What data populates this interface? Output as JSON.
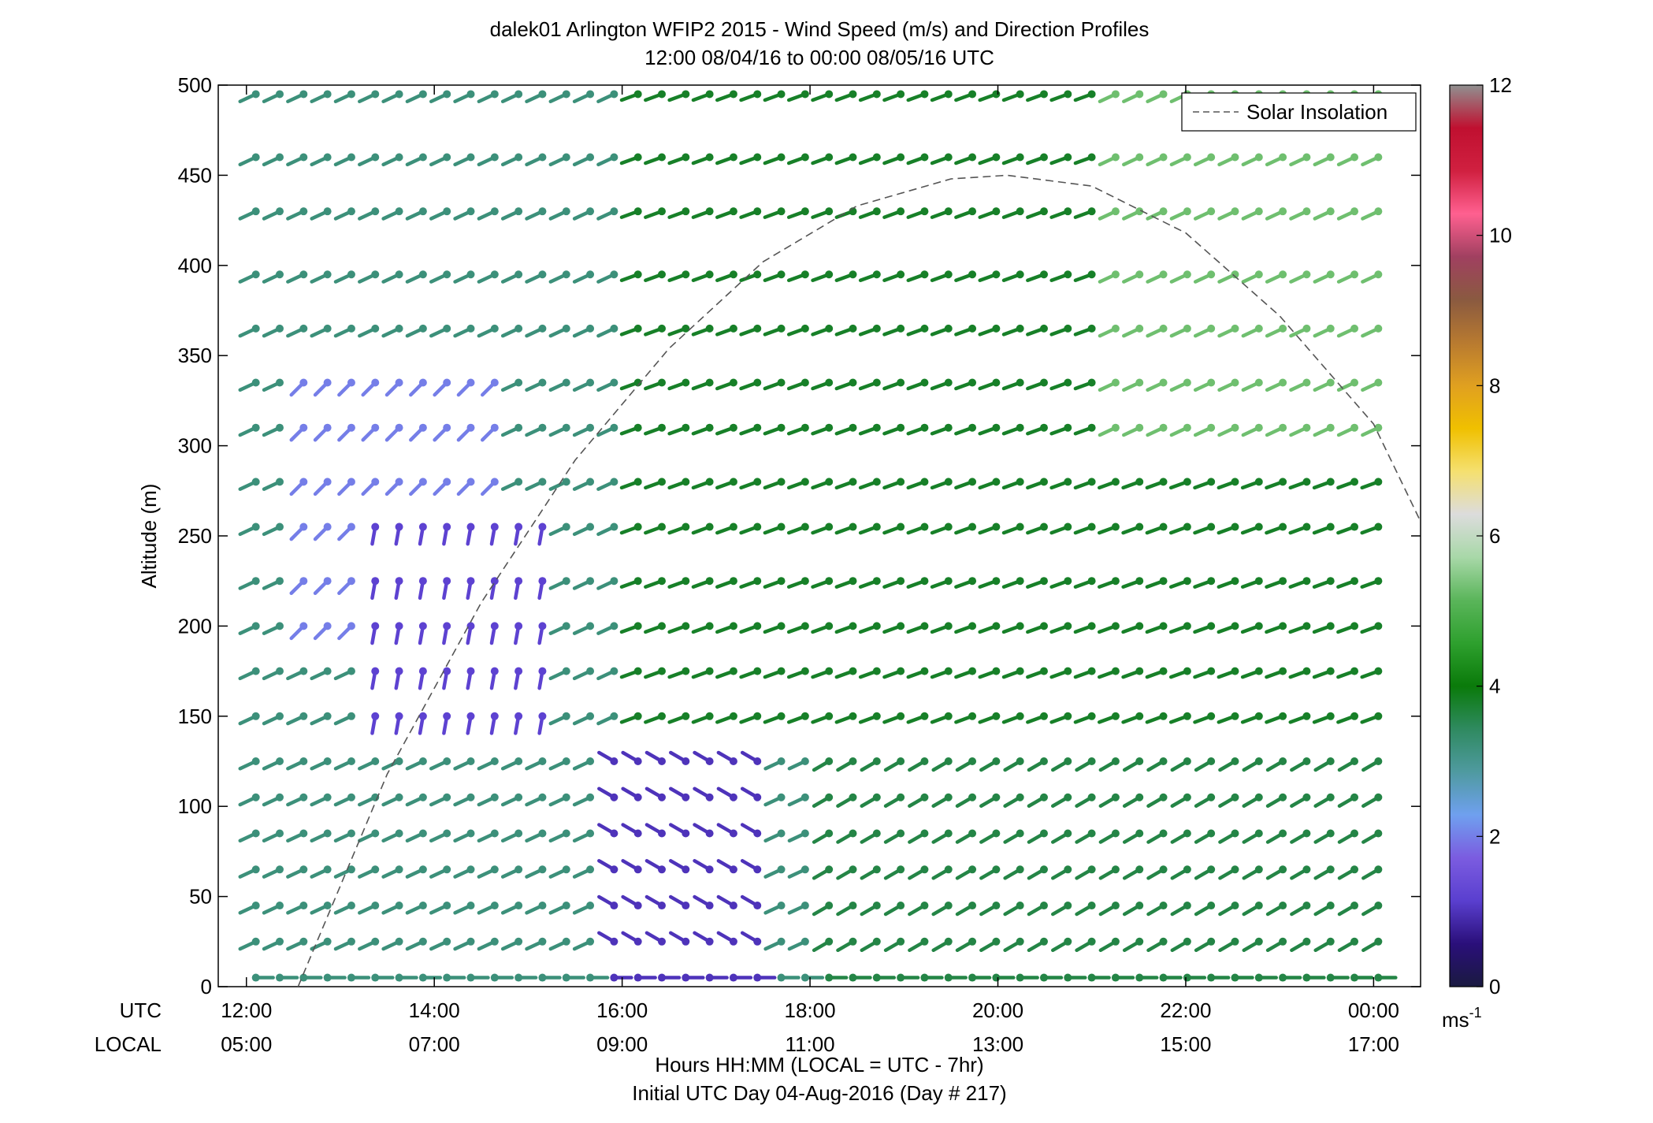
{
  "chart_data": {
    "type": "wind-barb-profile",
    "title": "dalek01 Arlington WFIP2 2015 - Wind Speed (m/s) and Direction Profiles",
    "subtitle": "12:00 08/04/16 to 00:00 08/05/16  UTC",
    "ylabel": "Altitude (m)",
    "ylim": [
      0,
      500
    ],
    "yticks": [
      "0",
      "50",
      "100",
      "150",
      "200",
      "250",
      "300",
      "350",
      "400",
      "450",
      "500"
    ],
    "xlim_hours_utc": [
      11.7,
      24.5
    ],
    "xtick_hours_utc": [
      12,
      14,
      16,
      18,
      20,
      22,
      24
    ],
    "xticks_utc": [
      "12:00",
      "14:00",
      "16:00",
      "18:00",
      "20:00",
      "22:00",
      "00:00"
    ],
    "xticks_local": [
      "05:00",
      "07:00",
      "09:00",
      "11:00",
      "13:00",
      "15:00",
      "17:00"
    ],
    "utc_row_label": "UTC",
    "local_row_label": "LOCAL",
    "xlabel_line1": "Hours HH:MM  (LOCAL = UTC - 7hr)",
    "xlabel_line2": "Initial UTC Day 04-Aug-2016 (Day # 217)",
    "legend": {
      "label": "Solar Insolation",
      "placement": "top-right",
      "style": "dashed gray"
    },
    "colorbar": {
      "range": [
        0,
        12
      ],
      "ticks": [
        "0",
        "2",
        "4",
        "6",
        "8",
        "10",
        "12"
      ],
      "unit_base": "ms",
      "unit_exp": "-1",
      "colors": [
        "#1a1a40",
        "#2a0f7a",
        "#5a3fcf",
        "#7b5ce0",
        "#6fa0ef",
        "#4f9aa0",
        "#2f8a60",
        "#0a7a0a",
        "#2ea02e",
        "#5ab55a",
        "#a8d8a8",
        "#dcdcdc",
        "#f5e070",
        "#f0c000",
        "#e0a020",
        "#b87a30",
        "#8a5a40",
        "#a04060",
        "#ff6090",
        "#d02040",
        "#c01030",
        "#909090"
      ]
    },
    "solar_insolation_curve": [
      {
        "hour": 12.55,
        "alt": 0
      },
      {
        "hour": 13.5,
        "alt": 118
      },
      {
        "hour": 14.5,
        "alt": 213
      },
      {
        "hour": 15.5,
        "alt": 292
      },
      {
        "hour": 16.5,
        "alt": 354
      },
      {
        "hour": 17.5,
        "alt": 402
      },
      {
        "hour": 18.5,
        "alt": 433
      },
      {
        "hour": 19.5,
        "alt": 448
      },
      {
        "hour": 20.1,
        "alt": 450
      },
      {
        "hour": 21.0,
        "alt": 444
      },
      {
        "hour": 22.0,
        "alt": 418
      },
      {
        "hour": 23.0,
        "alt": 372
      },
      {
        "hour": 24.0,
        "alt": 312
      },
      {
        "hour": 24.5,
        "alt": 258
      }
    ],
    "barb_time_range_hours_utc": [
      12.1,
      24.05
    ],
    "barb_count_per_level": 48,
    "levels_m": [
      5,
      25,
      45,
      65,
      85,
      105,
      125,
      150,
      175,
      200,
      225,
      255,
      280,
      310,
      335,
      365,
      395,
      430,
      460,
      495
    ],
    "speed_regimes": [
      {
        "time_range": [
          12.1,
          14.0
        ],
        "alt_range": [
          0,
          500
        ],
        "speed": 3.2,
        "dir_deg": 245
      },
      {
        "time_range": [
          12.6,
          14.8
        ],
        "alt_range": [
          200,
          340
        ],
        "speed": 2.0,
        "dir_deg": 225
      },
      {
        "time_range": [
          13.2,
          15.4
        ],
        "alt_range": [
          150,
          260
        ],
        "speed": 1.2,
        "dir_deg": 190
      },
      {
        "time_range": [
          15.8,
          17.6
        ],
        "alt_range": [
          0,
          140
        ],
        "speed": 1.0,
        "dir_deg": 300
      },
      {
        "time_range": [
          16.0,
          24.05
        ],
        "alt_range": [
          140,
          500
        ],
        "speed": 3.8,
        "dir_deg": 250
      },
      {
        "time_range": [
          21.0,
          24.05
        ],
        "alt_range": [
          300,
          500
        ],
        "speed": 5.3,
        "dir_deg": 245
      },
      {
        "time_range": [
          18.0,
          24.05
        ],
        "alt_range": [
          0,
          140
        ],
        "speed": 3.6,
        "dir_deg": 240
      }
    ]
  }
}
